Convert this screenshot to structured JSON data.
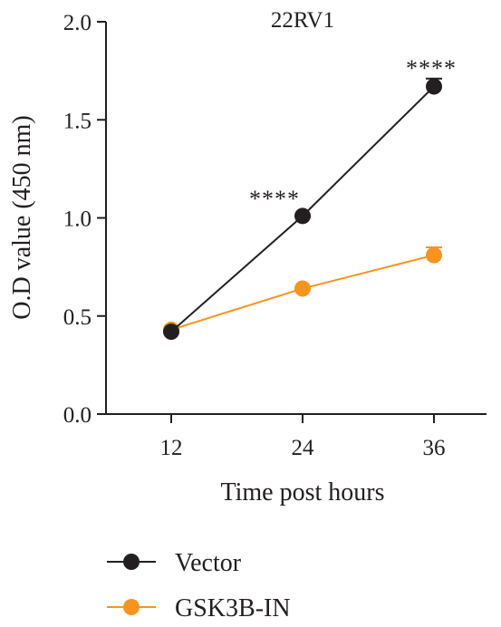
{
  "chart_data": {
    "type": "line",
    "title": "22RV1",
    "xlabel": "Time post hours",
    "ylabel": "O.D value (450 nm)",
    "x": [
      12,
      24,
      36
    ],
    "x_tick_labels": [
      "12",
      "24",
      "36"
    ],
    "ylim": [
      0.0,
      2.0
    ],
    "y_ticks": [
      0.0,
      0.5,
      1.0,
      1.5,
      2.0
    ],
    "y_tick_labels": [
      "0.0",
      "0.5",
      "1.0",
      "1.5",
      "2.0"
    ],
    "grid": false,
    "legend_position": "bottom-left",
    "series": [
      {
        "name": "Vector",
        "values": [
          0.42,
          1.01,
          1.67
        ],
        "errors": [
          0.0,
          0.0,
          0.04
        ],
        "color": "#231f20"
      },
      {
        "name": "GSK3B-IN",
        "values": [
          0.43,
          0.64,
          0.81
        ],
        "errors": [
          0.0,
          0.0,
          0.04
        ],
        "color": "#f7941d"
      }
    ],
    "annotations": [
      {
        "x": 24,
        "text": "****"
      },
      {
        "x": 36,
        "text": "****"
      }
    ]
  }
}
